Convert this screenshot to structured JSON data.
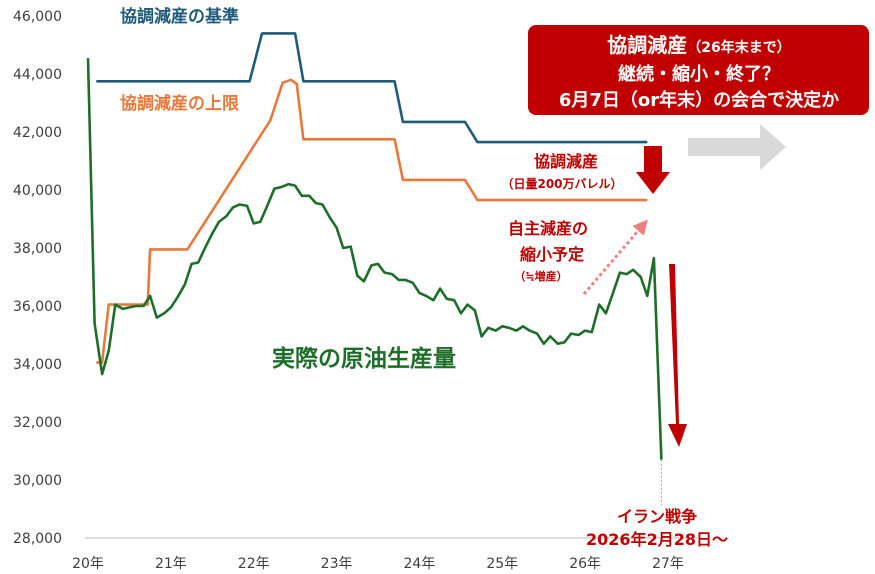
{
  "chart_data": {
    "type": "line",
    "x_unit": "year",
    "xlim": [
      2020.0,
      2027.3
    ],
    "ylim": [
      28000,
      46000
    ],
    "y_ticks": [
      "28,000",
      "30,000",
      "32,000",
      "34,000",
      "36,000",
      "38,000",
      "40,000",
      "42,000",
      "44,000",
      "46,000"
    ],
    "y_tick_values": [
      28000,
      30000,
      32000,
      34000,
      36000,
      38000,
      40000,
      42000,
      44000,
      46000
    ],
    "x_ticks": [
      "20年",
      "21年",
      "22年",
      "23年",
      "24年",
      "25年",
      "26年",
      "27年"
    ],
    "x_tick_values": [
      2020,
      2021,
      2022,
      2023,
      2024,
      2025,
      2026,
      2027
    ],
    "grid": false,
    "legend": "none (inline labels)",
    "colors": {
      "baseline": "#1f5c7a",
      "upper_limit": "#e8793a",
      "actual": "#1e6e2a",
      "accent_red": "#c00000",
      "callout_bg": "#c00000",
      "arrow_grey": "#d9d9d9",
      "dotted_pink": "#f08080"
    },
    "series": [
      {
        "name": "協調減産の基準",
        "values_xy": [
          [
            2020.1,
            43750
          ],
          [
            2021.95,
            43750
          ],
          [
            2022.1,
            45400
          ],
          [
            2022.5,
            45400
          ],
          [
            2022.6,
            43750
          ],
          [
            2023.7,
            43750
          ],
          [
            2023.8,
            42350
          ],
          [
            2024.55,
            42350
          ],
          [
            2024.7,
            41650
          ],
          [
            2026.75,
            41650
          ]
        ]
      },
      {
        "name": "協調減産の上限",
        "values_xy": [
          [
            2020.1,
            34050
          ],
          [
            2020.17,
            34050
          ],
          [
            2020.25,
            36050
          ],
          [
            2020.72,
            36050
          ],
          [
            2020.75,
            37950
          ],
          [
            2021.2,
            37950
          ],
          [
            2022.2,
            42400
          ],
          [
            2022.35,
            43700
          ],
          [
            2022.45,
            43800
          ],
          [
            2022.52,
            43650
          ],
          [
            2022.6,
            41750
          ],
          [
            2023.7,
            41750
          ],
          [
            2023.8,
            40350
          ],
          [
            2024.55,
            40350
          ],
          [
            2024.7,
            39650
          ],
          [
            2026.75,
            39650
          ]
        ]
      },
      {
        "name": "実際の原油生産量",
        "values_xy": [
          [
            2020.0,
            44550
          ],
          [
            2020.08,
            35400
          ],
          [
            2020.17,
            33650
          ],
          [
            2020.25,
            34450
          ],
          [
            2020.33,
            36050
          ],
          [
            2020.42,
            35900
          ],
          [
            2020.5,
            35950
          ],
          [
            2020.58,
            36000
          ],
          [
            2020.67,
            36000
          ],
          [
            2020.75,
            36350
          ],
          [
            2020.83,
            35600
          ],
          [
            2020.92,
            35750
          ],
          [
            2021.0,
            35950
          ],
          [
            2021.08,
            36300
          ],
          [
            2021.17,
            36750
          ],
          [
            2021.25,
            37450
          ],
          [
            2021.33,
            37500
          ],
          [
            2021.42,
            38050
          ],
          [
            2021.5,
            38500
          ],
          [
            2021.58,
            38900
          ],
          [
            2021.67,
            39100
          ],
          [
            2021.75,
            39400
          ],
          [
            2021.83,
            39500
          ],
          [
            2021.92,
            39450
          ],
          [
            2022.0,
            38850
          ],
          [
            2022.08,
            38900
          ],
          [
            2022.17,
            39500
          ],
          [
            2022.25,
            40050
          ],
          [
            2022.33,
            40100
          ],
          [
            2022.42,
            40200
          ],
          [
            2022.5,
            40150
          ],
          [
            2022.58,
            39800
          ],
          [
            2022.67,
            39800
          ],
          [
            2022.75,
            39550
          ],
          [
            2022.83,
            39500
          ],
          [
            2022.92,
            39050
          ],
          [
            2023.0,
            38700
          ],
          [
            2023.08,
            38000
          ],
          [
            2023.17,
            38050
          ],
          [
            2023.25,
            37050
          ],
          [
            2023.33,
            36850
          ],
          [
            2023.42,
            37400
          ],
          [
            2023.5,
            37450
          ],
          [
            2023.58,
            37150
          ],
          [
            2023.67,
            37100
          ],
          [
            2023.75,
            36900
          ],
          [
            2023.83,
            36900
          ],
          [
            2023.92,
            36800
          ],
          [
            2024.0,
            36450
          ],
          [
            2024.08,
            36350
          ],
          [
            2024.17,
            36200
          ],
          [
            2024.25,
            36600
          ],
          [
            2024.33,
            36250
          ],
          [
            2024.42,
            36200
          ],
          [
            2024.5,
            35750
          ],
          [
            2024.58,
            36050
          ],
          [
            2024.67,
            35850
          ],
          [
            2024.75,
            34950
          ],
          [
            2024.83,
            35250
          ],
          [
            2024.92,
            35150
          ],
          [
            2025.0,
            35300
          ],
          [
            2025.08,
            35250
          ],
          [
            2025.17,
            35150
          ],
          [
            2025.25,
            35300
          ],
          [
            2025.33,
            35150
          ],
          [
            2025.42,
            35050
          ],
          [
            2025.5,
            34700
          ],
          [
            2025.58,
            34950
          ],
          [
            2025.67,
            34700
          ],
          [
            2025.75,
            34750
          ],
          [
            2025.83,
            35050
          ],
          [
            2025.92,
            35000
          ],
          [
            2026.0,
            35150
          ],
          [
            2026.08,
            35100
          ],
          [
            2026.17,
            36050
          ],
          [
            2026.25,
            35750
          ],
          [
            2026.33,
            36400
          ],
          [
            2026.42,
            37150
          ],
          [
            2026.5,
            37100
          ],
          [
            2026.58,
            37250
          ],
          [
            2026.67,
            37000
          ],
          [
            2026.75,
            36350
          ],
          [
            2026.83,
            37650
          ],
          [
            2026.92,
            30700
          ]
        ]
      }
    ],
    "labels": {
      "baseline": "協調減産の基準",
      "upper_limit": "協調減産の上限",
      "actual": "実際の原油生産量",
      "coop_cut_line1": "協調減産",
      "coop_cut_line2": "（日量200万バレル）",
      "voluntary_line1": "自主減産の",
      "voluntary_line2": "縮小予定",
      "voluntary_line3": "（≒増産）",
      "iran_line1": "イラン戦争",
      "iran_line2": "2026年2月28日～"
    },
    "callout": {
      "title": "協調減産",
      "title_note": "（26年末まで）",
      "line2": "継続・縮小・終了？",
      "line3": "6月7日（or年末）の会合で決定か"
    },
    "events": {
      "coop_cut_from": 41650,
      "coop_cut_to": 39650,
      "iran_war_x": 2026.92
    }
  }
}
